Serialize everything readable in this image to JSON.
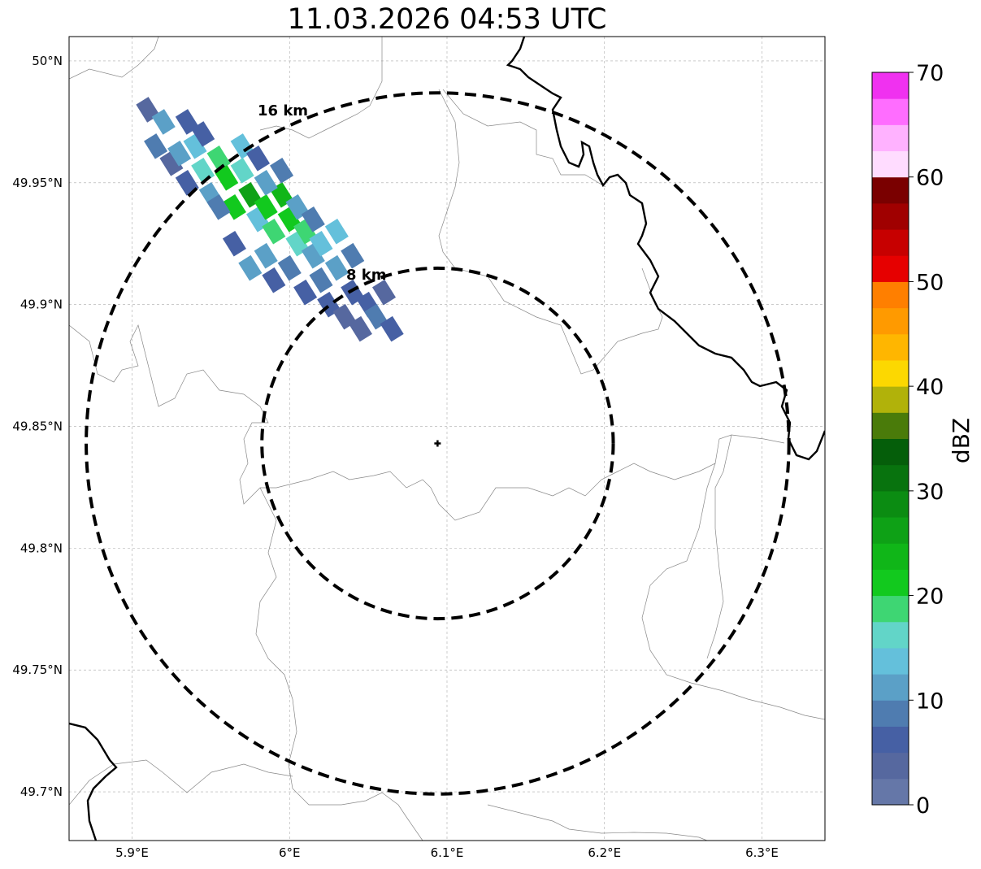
{
  "title": "11.03.2026 04:53 UTC",
  "map": {
    "lon_range": [
      5.86,
      6.34
    ],
    "lat_range": [
      49.68,
      50.01
    ],
    "x_ticks": [
      {
        "value": 5.9,
        "label": "5.9°E"
      },
      {
        "value": 6.0,
        "label": "6°E"
      },
      {
        "value": 6.1,
        "label": "6.1°E"
      },
      {
        "value": 6.2,
        "label": "6.2°E"
      },
      {
        "value": 6.3,
        "label": "6.3°E"
      }
    ],
    "y_ticks": [
      {
        "value": 50.0,
        "label": "50°N"
      },
      {
        "value": 49.95,
        "label": "49.95°N"
      },
      {
        "value": 49.9,
        "label": "49.9°N"
      },
      {
        "value": 49.85,
        "label": "49.85°N"
      },
      {
        "value": 49.8,
        "label": "49.8°N"
      },
      {
        "value": 49.75,
        "label": "49.75°N"
      },
      {
        "value": 49.7,
        "label": "49.7°N"
      }
    ],
    "radar_site": {
      "lon": 6.094,
      "lat": 49.843
    },
    "range_rings": [
      {
        "label": "8 km",
        "radius_km": 8
      },
      {
        "label": "16 km",
        "radius_km": 16
      }
    ]
  },
  "colorbar": {
    "label": "dBZ",
    "min": 0,
    "max": 70,
    "tick_labels": [
      "0",
      "10",
      "20",
      "30",
      "40",
      "50",
      "60",
      "70"
    ],
    "colors": [
      "#6577a8",
      "#56689f",
      "#4660a4",
      "#4f7cb0",
      "#5ba0c7",
      "#64c0db",
      "#62d5c8",
      "#3ed673",
      "#12c91e",
      "#10b618",
      "#0ea116",
      "#0b8c12",
      "#08730e",
      "#055e0a",
      "#4a7b0a",
      "#b1b20a",
      "#fcd801",
      "#ffb600",
      "#ff9a00",
      "#ff7f00",
      "#e60000",
      "#c70000",
      "#a00000",
      "#7a0000",
      "#ffdcff",
      "#ffb2ff",
      "#ff6dff",
      "#f031f0"
    ]
  },
  "reflectivity_cells": [
    {
      "lon": 5.91,
      "lat": 49.98,
      "dbz": 4
    },
    {
      "lon": 5.915,
      "lat": 49.965,
      "dbz": 8
    },
    {
      "lon": 5.92,
      "lat": 49.975,
      "dbz": 12
    },
    {
      "lon": 5.925,
      "lat": 49.958,
      "dbz": 4
    },
    {
      "lon": 5.93,
      "lat": 49.962,
      "dbz": 10
    },
    {
      "lon": 5.935,
      "lat": 49.95,
      "dbz": 6
    },
    {
      "lon": 5.94,
      "lat": 49.965,
      "dbz": 14
    },
    {
      "lon": 5.945,
      "lat": 49.955,
      "dbz": 17
    },
    {
      "lon": 5.95,
      "lat": 49.945,
      "dbz": 12
    },
    {
      "lon": 5.955,
      "lat": 49.96,
      "dbz": 18
    },
    {
      "lon": 5.96,
      "lat": 49.952,
      "dbz": 22
    },
    {
      "lon": 5.965,
      "lat": 49.94,
      "dbz": 20
    },
    {
      "lon": 5.97,
      "lat": 49.955,
      "dbz": 16
    },
    {
      "lon": 5.975,
      "lat": 49.945,
      "dbz": 25
    },
    {
      "lon": 5.98,
      "lat": 49.935,
      "dbz": 14
    },
    {
      "lon": 5.985,
      "lat": 49.94,
      "dbz": 22
    },
    {
      "lon": 5.99,
      "lat": 49.93,
      "dbz": 18
    },
    {
      "lon": 5.995,
      "lat": 49.945,
      "dbz": 24
    },
    {
      "lon": 6.0,
      "lat": 49.935,
      "dbz": 20
    },
    {
      "lon": 6.005,
      "lat": 49.925,
      "dbz": 15
    },
    {
      "lon": 6.01,
      "lat": 49.93,
      "dbz": 19
    },
    {
      "lon": 6.015,
      "lat": 49.92,
      "dbz": 10
    },
    {
      "lon": 6.02,
      "lat": 49.91,
      "dbz": 8
    },
    {
      "lon": 6.025,
      "lat": 49.9,
      "dbz": 6
    },
    {
      "lon": 6.03,
      "lat": 49.915,
      "dbz": 12
    },
    {
      "lon": 6.035,
      "lat": 49.895,
      "dbz": 4
    },
    {
      "lon": 6.04,
      "lat": 49.905,
      "dbz": 7
    },
    {
      "lon": 6.045,
      "lat": 49.89,
      "dbz": 3
    },
    {
      "lon": 6.05,
      "lat": 49.9,
      "dbz": 5
    },
    {
      "lon": 6.055,
      "lat": 49.895,
      "dbz": 8
    },
    {
      "lon": 6.06,
      "lat": 49.905,
      "dbz": 4
    },
    {
      "lon": 6.065,
      "lat": 49.89,
      "dbz": 6
    },
    {
      "lon": 5.97,
      "lat": 49.965,
      "dbz": 13
    },
    {
      "lon": 5.985,
      "lat": 49.95,
      "dbz": 11
    },
    {
      "lon": 5.995,
      "lat": 49.955,
      "dbz": 9
    },
    {
      "lon": 6.005,
      "lat": 49.94,
      "dbz": 12
    },
    {
      "lon": 6.015,
      "lat": 49.935,
      "dbz": 8
    },
    {
      "lon": 6.02,
      "lat": 49.925,
      "dbz": 13
    },
    {
      "lon": 5.955,
      "lat": 49.94,
      "dbz": 9
    },
    {
      "lon": 5.965,
      "lat": 49.925,
      "dbz": 7
    },
    {
      "lon": 5.975,
      "lat": 49.915,
      "dbz": 10
    },
    {
      "lon": 5.985,
      "lat": 49.92,
      "dbz": 11
    },
    {
      "lon": 5.99,
      "lat": 49.91,
      "dbz": 5
    },
    {
      "lon": 6.0,
      "lat": 49.915,
      "dbz": 9
    },
    {
      "lon": 5.945,
      "lat": 49.97,
      "dbz": 6
    },
    {
      "lon": 5.935,
      "lat": 49.975,
      "dbz": 5
    },
    {
      "lon": 5.98,
      "lat": 49.96,
      "dbz": 7
    },
    {
      "lon": 6.03,
      "lat": 49.93,
      "dbz": 14
    },
    {
      "lon": 6.04,
      "lat": 49.92,
      "dbz": 9
    },
    {
      "lon": 6.01,
      "lat": 49.905,
      "dbz": 6
    }
  ]
}
